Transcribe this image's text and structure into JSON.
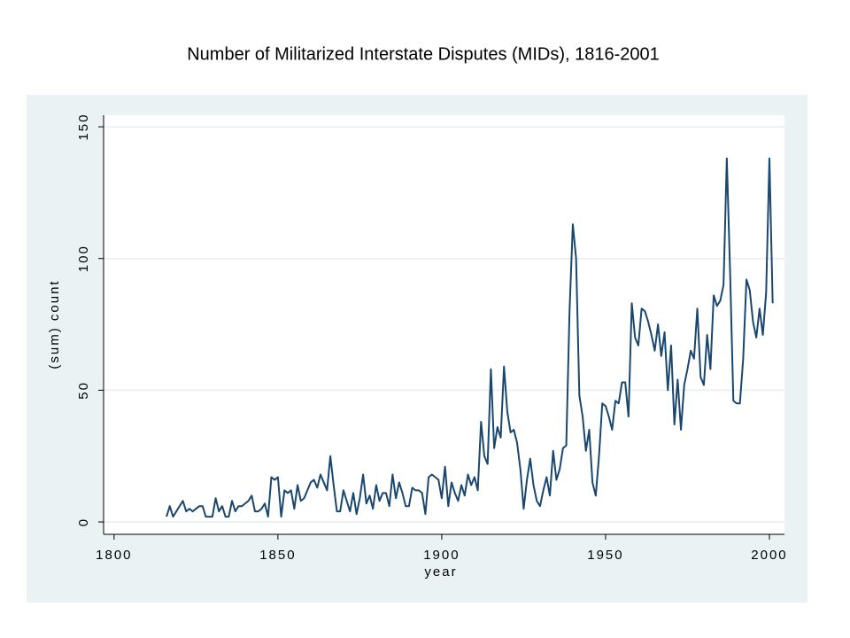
{
  "chart_data": {
    "type": "line",
    "title": "Number of Militarized Interstate Disputes (MIDs), 1816-2001",
    "x_label": "year",
    "y_label": "(sum) count",
    "x": [
      1816,
      1817,
      1818,
      1819,
      1820,
      1821,
      1822,
      1823,
      1824,
      1825,
      1826,
      1827,
      1828,
      1829,
      1830,
      1831,
      1832,
      1833,
      1834,
      1835,
      1836,
      1837,
      1838,
      1839,
      1840,
      1841,
      1842,
      1843,
      1844,
      1845,
      1846,
      1847,
      1848,
      1849,
      1850,
      1851,
      1852,
      1853,
      1854,
      1855,
      1856,
      1857,
      1858,
      1859,
      1860,
      1861,
      1862,
      1863,
      1864,
      1865,
      1866,
      1867,
      1868,
      1869,
      1870,
      1871,
      1872,
      1873,
      1874,
      1875,
      1876,
      1877,
      1878,
      1879,
      1880,
      1881,
      1882,
      1883,
      1884,
      1885,
      1886,
      1887,
      1888,
      1889,
      1890,
      1891,
      1892,
      1893,
      1894,
      1895,
      1896,
      1897,
      1898,
      1899,
      1900,
      1901,
      1902,
      1903,
      1904,
      1905,
      1906,
      1907,
      1908,
      1909,
      1910,
      1911,
      1912,
      1913,
      1914,
      1915,
      1916,
      1917,
      1918,
      1919,
      1920,
      1921,
      1922,
      1923,
      1924,
      1925,
      1926,
      1927,
      1928,
      1929,
      1930,
      1931,
      1932,
      1933,
      1934,
      1935,
      1936,
      1937,
      1938,
      1939,
      1940,
      1941,
      1942,
      1943,
      1944,
      1945,
      1946,
      1947,
      1948,
      1949,
      1950,
      1951,
      1952,
      1953,
      1954,
      1955,
      1956,
      1957,
      1958,
      1959,
      1960,
      1961,
      1962,
      1963,
      1964,
      1965,
      1966,
      1967,
      1968,
      1969,
      1970,
      1971,
      1972,
      1973,
      1974,
      1975,
      1976,
      1977,
      1978,
      1979,
      1980,
      1981,
      1982,
      1983,
      1984,
      1985,
      1986,
      1987,
      1988,
      1989,
      1990,
      1991,
      1992,
      1993,
      1994,
      1995,
      1996,
      1997,
      1998,
      1999,
      2000,
      2001
    ],
    "series": [
      {
        "name": "(sum) count",
        "color": "#1a476f",
        "values": [
          2,
          6,
          2,
          4,
          6,
          8,
          4,
          5,
          4,
          5,
          6,
          6,
          2,
          2,
          2,
          9,
          4,
          6,
          2,
          2,
          8,
          4,
          6,
          6,
          7,
          8,
          10,
          4,
          4,
          5,
          7,
          2,
          17,
          16,
          17,
          2,
          12,
          11,
          12,
          5,
          14,
          8,
          9,
          12,
          15,
          16,
          13,
          18,
          15,
          12,
          25,
          14,
          4,
          4,
          12,
          8,
          4,
          11,
          3,
          9,
          18,
          7,
          10,
          5,
          14,
          8,
          11,
          11,
          6,
          18,
          9,
          15,
          11,
          6,
          6,
          13,
          12,
          12,
          11,
          3,
          17,
          18,
          17,
          16,
          9,
          21,
          6,
          15,
          11,
          8,
          14,
          10,
          18,
          14,
          17,
          12,
          38,
          25,
          22,
          58,
          28,
          36,
          32,
          59,
          42,
          34,
          35,
          30,
          20,
          5,
          16,
          24,
          14,
          8,
          6,
          12,
          17,
          10,
          27,
          16,
          20,
          28,
          29,
          80,
          113,
          100,
          48,
          40,
          27,
          35,
          15,
          10,
          25,
          45,
          44,
          40,
          35,
          46,
          45,
          53,
          53,
          40,
          83,
          70,
          67,
          81,
          80,
          76,
          71,
          65,
          75,
          63,
          72,
          50,
          67,
          37,
          54,
          35,
          52,
          58,
          65,
          62,
          81,
          55,
          52,
          71,
          58,
          86,
          82,
          84,
          90,
          138,
          95,
          46,
          45,
          45,
          62,
          92,
          88,
          76,
          70,
          81,
          71,
          87,
          138,
          83
        ]
      }
    ],
    "xlim": [
      1796.8,
      2004.6
    ],
    "ylim": [
      -4.7,
      154.4
    ],
    "xticks": [
      1800,
      1850,
      1900,
      1950,
      2000
    ],
    "yticks": [
      0,
      50,
      100,
      150
    ],
    "grid": true
  }
}
